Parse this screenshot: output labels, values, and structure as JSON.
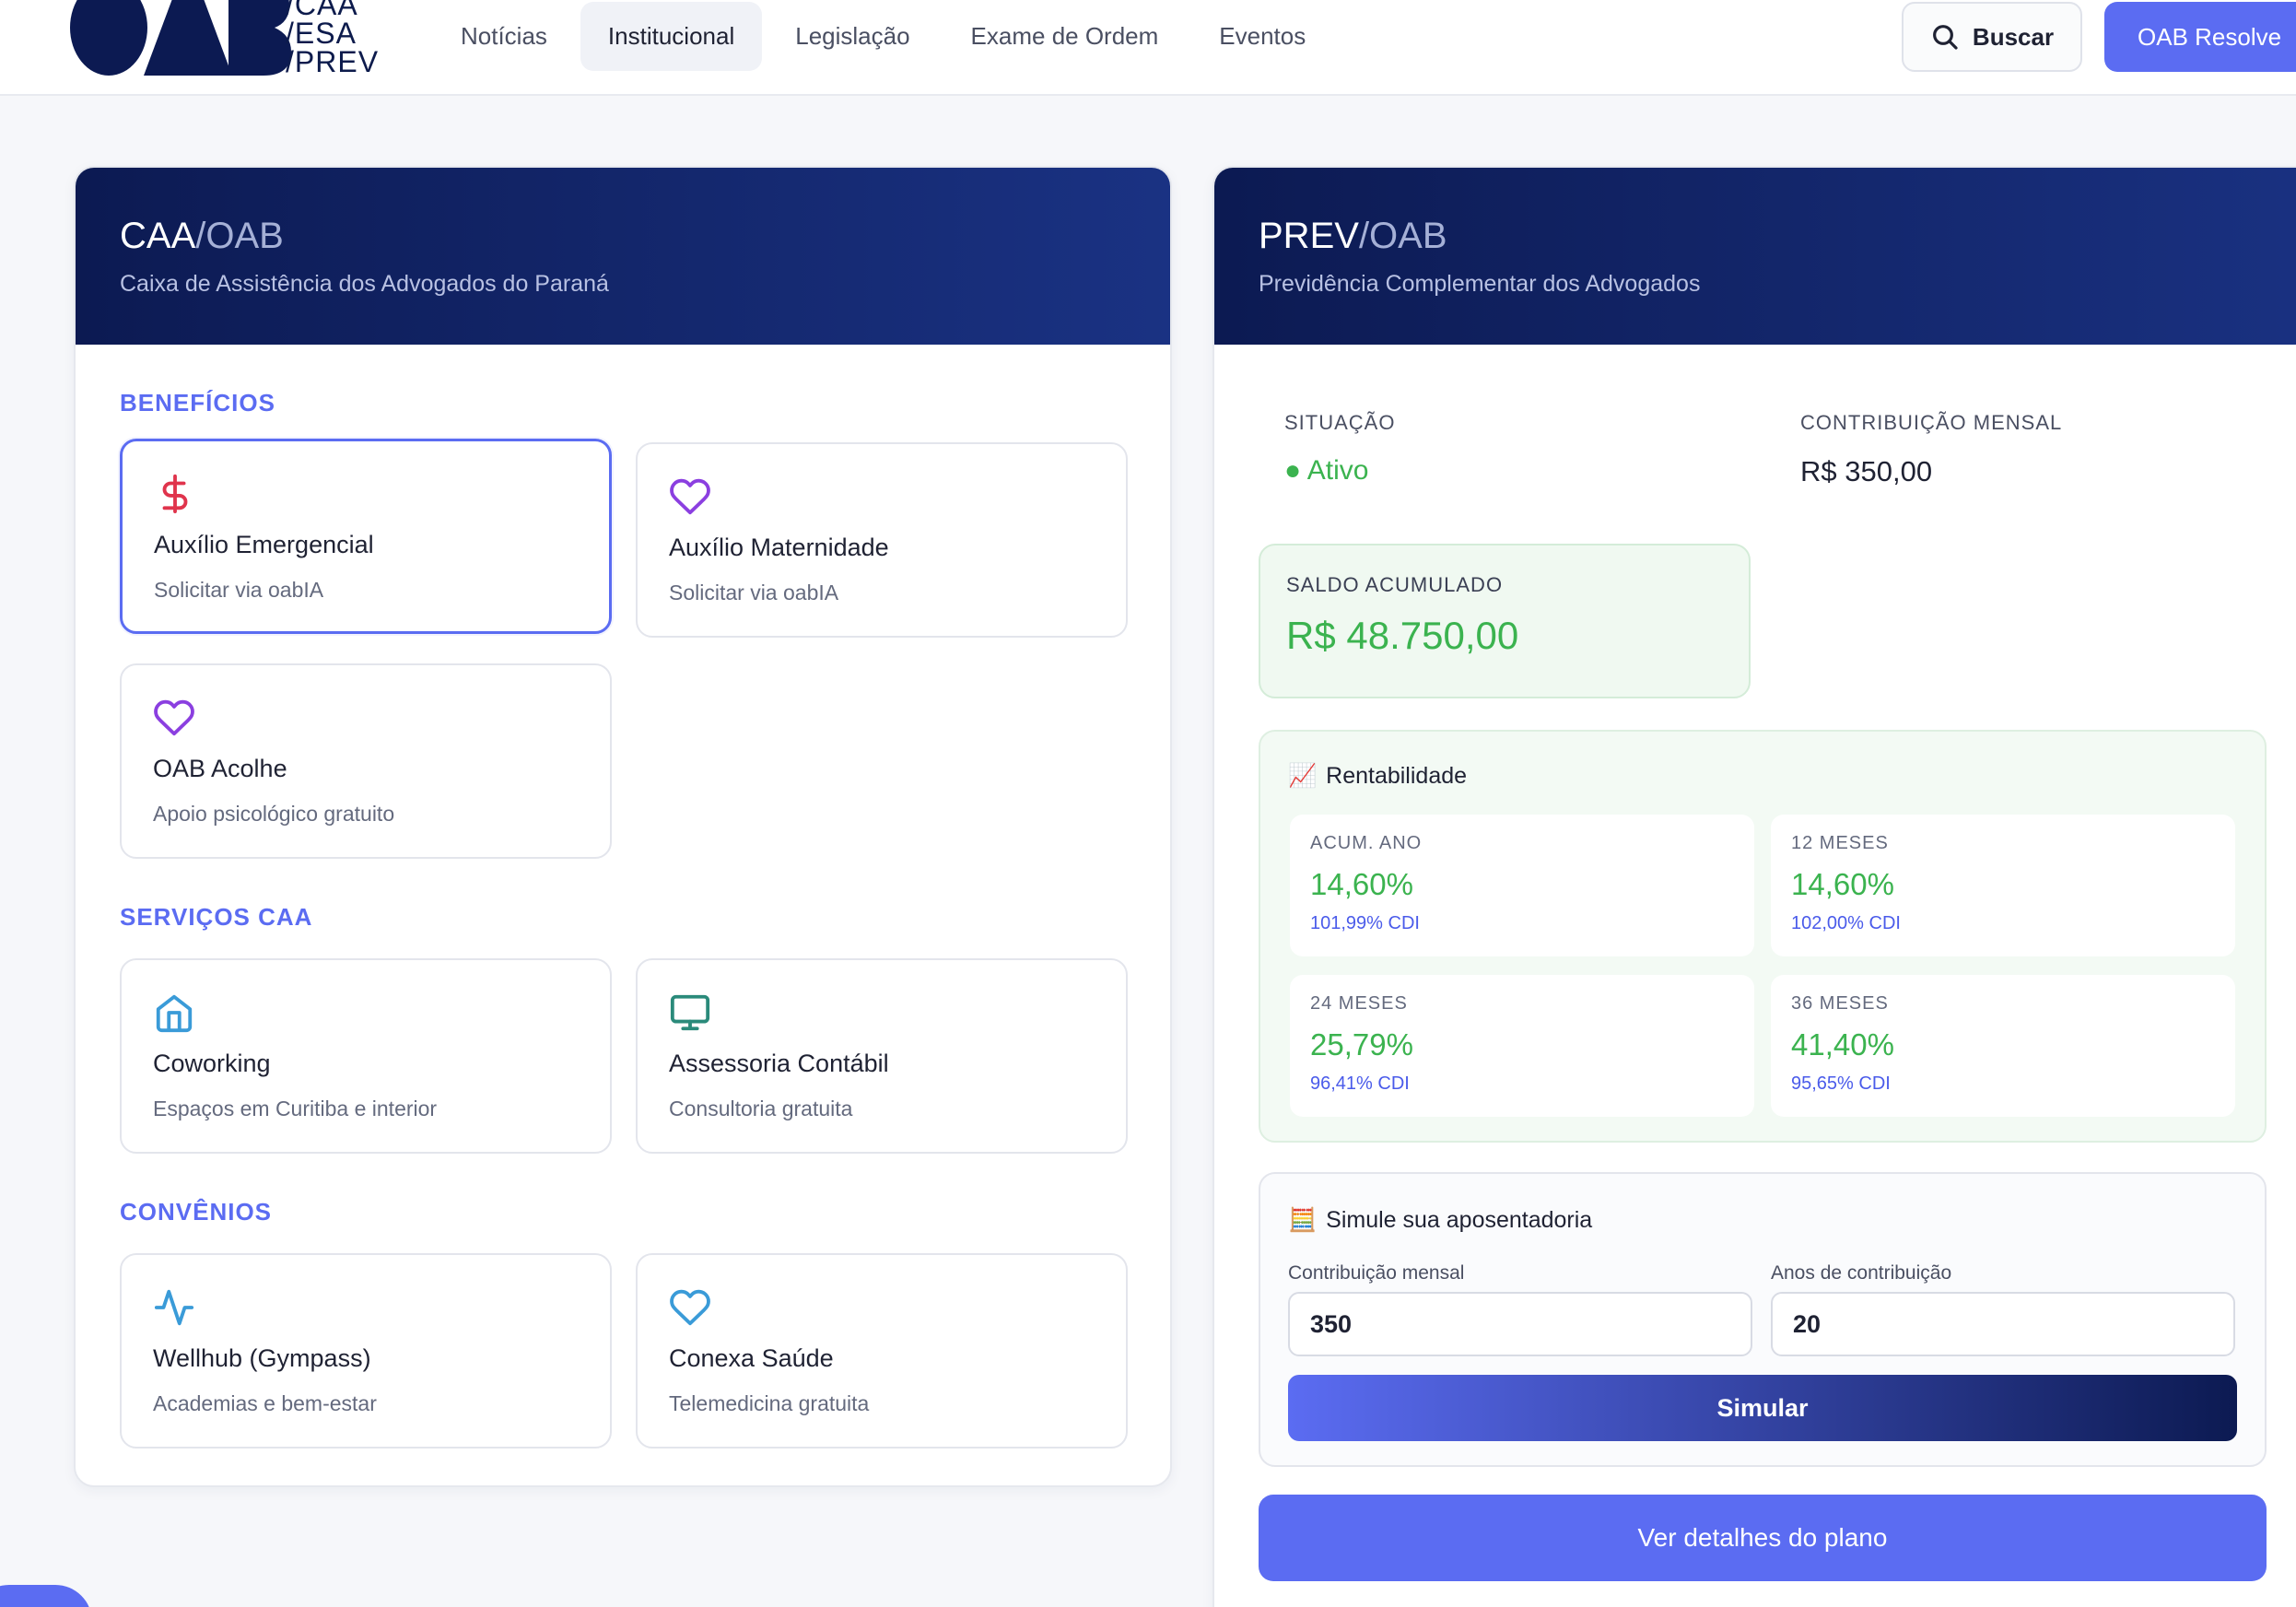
{
  "header": {
    "logo_lines": [
      "/CAA",
      "/ESA",
      "/PREV"
    ],
    "nav": [
      "Notícias",
      "Institucional",
      "Legislação",
      "Exame de Ordem",
      "Eventos"
    ],
    "active_nav": "Institucional",
    "search_label": "Buscar",
    "resolve_label": "OAB Resolve"
  },
  "caa": {
    "title_bold": "CAA",
    "title_light": "/OAB",
    "subtitle": "Caixa de Assistência dos Advogados do Paraná",
    "beneficios_label": "BENEFÍCIOS",
    "beneficios": [
      {
        "title": "Auxílio Emergencial",
        "desc": "Solicitar via oabIA",
        "icon": "dollar-icon"
      },
      {
        "title": "Auxílio Maternidade",
        "desc": "Solicitar via oabIA",
        "icon": "heart-icon"
      },
      {
        "title": "OAB Acolhe",
        "desc": "Apoio psicológico gratuito",
        "icon": "heart-icon"
      }
    ],
    "servicos_label": "SERVIÇOS CAA",
    "servicos": [
      {
        "title": "Coworking",
        "desc": "Espaços em Curitiba e interior",
        "icon": "home-icon"
      },
      {
        "title": "Assessoria Contábil",
        "desc": "Consultoria gratuita",
        "icon": "monitor-icon"
      }
    ],
    "convenios_label": "CONVÊNIOS",
    "convenios": [
      {
        "title": "Wellhub (Gympass)",
        "desc": "Academias e bem-estar",
        "icon": "activity-icon"
      },
      {
        "title": "Conexa Saúde",
        "desc": "Telemedicina gratuita",
        "icon": "heart-icon"
      }
    ]
  },
  "prev": {
    "title_bold": "PREV",
    "title_light": "/OAB",
    "subtitle": "Previdência Complementar dos Advogados",
    "situacao_label": "SITUAÇÃO",
    "situacao_value": "● Ativo",
    "contrib_label": "CONTRIBUIÇÃO MENSAL",
    "contrib_value": "R$ 350,00",
    "saldo_label": "SALDO ACUMULADO",
    "saldo_value": "R$ 48.750,00",
    "rent_icon": "📈",
    "rent_title": "Rentabilidade",
    "rentabilidade": [
      {
        "period": "ACUM. ANO",
        "value": "14,60%",
        "cdi": "101,99% CDI"
      },
      {
        "period": "12 MESES",
        "value": "14,60%",
        "cdi": "102,00% CDI"
      },
      {
        "period": "24 MESES",
        "value": "25,79%",
        "cdi": "96,41% CDI"
      },
      {
        "period": "36 MESES",
        "value": "41,40%",
        "cdi": "95,65% CDI"
      }
    ],
    "sim_icon": "🧮",
    "sim_title": "Simule sua aposentadoria",
    "sim_contrib_label": "Contribuição mensal",
    "sim_contrib_value": "350",
    "sim_anos_label": "Anos de contribuição",
    "sim_anos_value": "20",
    "sim_button": "Simular",
    "details_button": "Ver detalhes do plano"
  },
  "colors": {
    "navy": "#0c1a52",
    "accent": "#5b6cf2",
    "success": "#3bb34f",
    "dollar": "#e0344c",
    "purple": "#8b3fe0",
    "blue_icon": "#3a9bd8",
    "teal_icon": "#2a8a7a"
  }
}
